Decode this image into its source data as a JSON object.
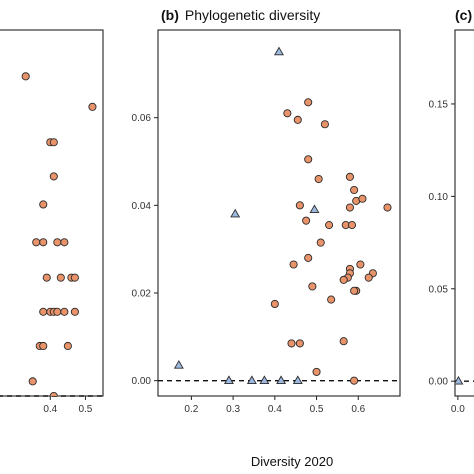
{
  "figure": {
    "xlabel": "Diversity 2020"
  },
  "colors": {
    "circle_fill": "#E8936A",
    "triangle_fill": "#9DB9E0",
    "marker_stroke": "#2b2b2b",
    "frame": "#222222"
  },
  "chart_data": [
    {
      "type": "scatter",
      "panel": "a",
      "title": "",
      "xlim": [
        0.2,
        0.55
      ],
      "ylim": [
        0.0,
        0.3
      ],
      "xticks": [
        "0.4",
        "0.5"
      ],
      "xtick_values": [
        0.4,
        0.5
      ],
      "yticks": [],
      "ytick_values": [],
      "reference_line_y": 0,
      "series": [
        {
          "marker": "circle",
          "points": [
            [
              0.33,
              0.262
            ],
            [
              0.52,
              0.237
            ],
            [
              0.4,
              0.208
            ],
            [
              0.41,
              0.208
            ],
            [
              0.41,
              0.18
            ],
            [
              0.38,
              0.157
            ],
            [
              0.36,
              0.126
            ],
            [
              0.38,
              0.126
            ],
            [
              0.42,
              0.126
            ],
            [
              0.44,
              0.126
            ],
            [
              0.39,
              0.097
            ],
            [
              0.43,
              0.097
            ],
            [
              0.46,
              0.097
            ],
            [
              0.47,
              0.097
            ],
            [
              0.38,
              0.069
            ],
            [
              0.4,
              0.069
            ],
            [
              0.41,
              0.069
            ],
            [
              0.42,
              0.069
            ],
            [
              0.44,
              0.069
            ],
            [
              0.47,
              0.069
            ],
            [
              0.37,
              0.041
            ],
            [
              0.38,
              0.041
            ],
            [
              0.45,
              0.041
            ],
            [
              0.35,
              0.012
            ],
            [
              0.41,
              0.0
            ]
          ]
        }
      ]
    },
    {
      "type": "scatter",
      "panel": "b",
      "title": "(b)",
      "subtitle": "Phylogenetic diversity",
      "xlim": [
        0.12,
        0.7
      ],
      "ylim": [
        -0.0035,
        0.08
      ],
      "xticks": [
        "0.2",
        "0.3",
        "0.4",
        "0.5",
        "0.6"
      ],
      "xtick_values": [
        0.2,
        0.3,
        0.4,
        0.5,
        0.6
      ],
      "yticks": [
        "0.00",
        "0.02",
        "0.04",
        "0.06"
      ],
      "ytick_values": [
        0.0,
        0.02,
        0.04,
        0.06
      ],
      "reference_line_y": 0,
      "series": [
        {
          "marker": "triangle",
          "points": [
            [
              0.41,
              0.075
            ],
            [
              0.305,
              0.038
            ],
            [
              0.495,
              0.039
            ],
            [
              0.17,
              0.0035
            ],
            [
              0.29,
              0.0
            ],
            [
              0.345,
              0.0
            ],
            [
              0.375,
              0.0
            ],
            [
              0.415,
              0.0
            ],
            [
              0.455,
              0.0
            ]
          ]
        },
        {
          "marker": "circle",
          "points": [
            [
              0.48,
              0.0635
            ],
            [
              0.43,
              0.061
            ],
            [
              0.455,
              0.0595
            ],
            [
              0.52,
              0.0585
            ],
            [
              0.48,
              0.0505
            ],
            [
              0.505,
              0.046
            ],
            [
              0.58,
              0.0465
            ],
            [
              0.59,
              0.0435
            ],
            [
              0.595,
              0.041
            ],
            [
              0.61,
              0.0415
            ],
            [
              0.58,
              0.0395
            ],
            [
              0.67,
              0.0395
            ],
            [
              0.46,
              0.04
            ],
            [
              0.475,
              0.0365
            ],
            [
              0.53,
              0.0355
            ],
            [
              0.57,
              0.0355
            ],
            [
              0.585,
              0.0355
            ],
            [
              0.51,
              0.0315
            ],
            [
              0.48,
              0.028
            ],
            [
              0.445,
              0.0265
            ],
            [
              0.605,
              0.0265
            ],
            [
              0.58,
              0.0255
            ],
            [
              0.58,
              0.0245
            ],
            [
              0.635,
              0.0245
            ],
            [
              0.575,
              0.0235
            ],
            [
              0.565,
              0.023
            ],
            [
              0.625,
              0.0235
            ],
            [
              0.49,
              0.0215
            ],
            [
              0.595,
              0.0205
            ],
            [
              0.59,
              0.0205
            ],
            [
              0.535,
              0.0185
            ],
            [
              0.4,
              0.0175
            ],
            [
              0.565,
              0.009
            ],
            [
              0.44,
              0.0085
            ],
            [
              0.46,
              0.0085
            ],
            [
              0.5,
              0.002
            ],
            [
              0.59,
              0.0
            ]
          ]
        }
      ]
    },
    {
      "type": "scatter",
      "panel": "c",
      "title": "(c)",
      "xlim": [
        -0.01,
        0.2
      ],
      "ylim": [
        -0.008,
        0.19
      ],
      "xticks": [
        "0.0"
      ],
      "xtick_values": [
        0.0
      ],
      "yticks": [
        "0.00",
        "0.05",
        "0.10",
        "0.15"
      ],
      "ytick_values": [
        0.0,
        0.05,
        0.1,
        0.15
      ],
      "reference_line_y": 0,
      "series": [
        {
          "marker": "triangle",
          "points": [
            [
              0.002,
              0.0
            ]
          ]
        }
      ]
    }
  ]
}
